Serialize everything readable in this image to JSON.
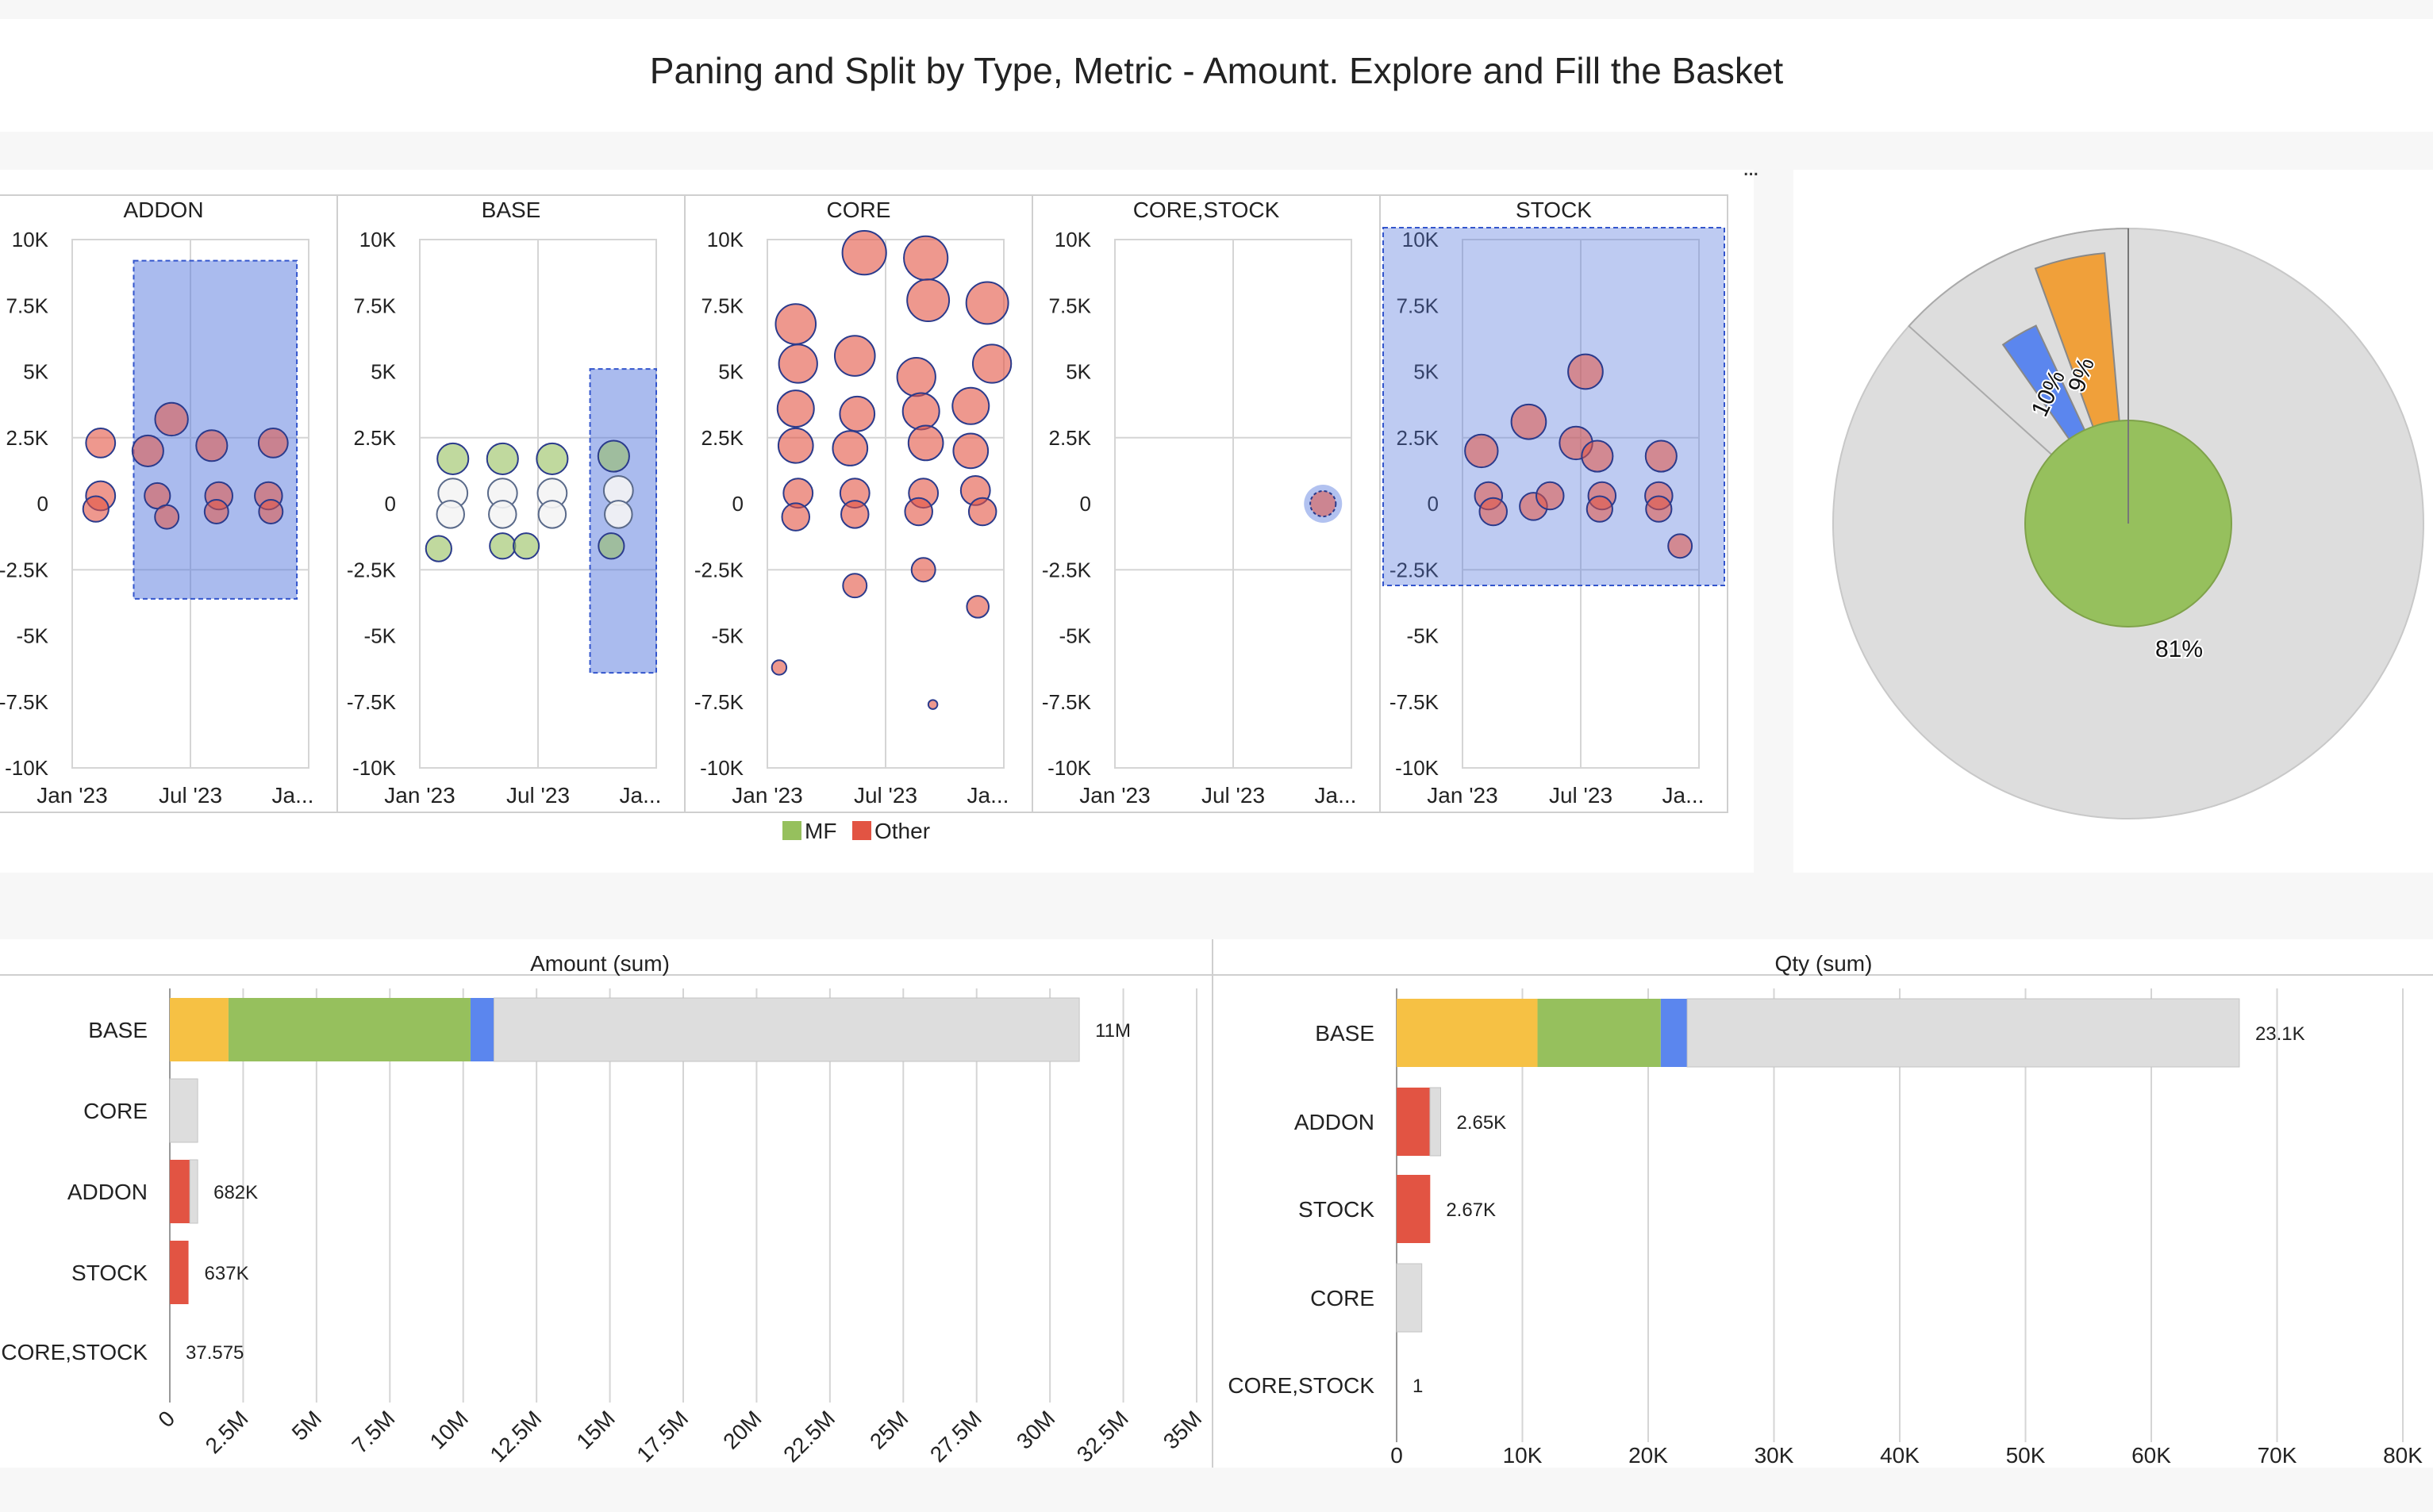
{
  "title": "Paning and Split by Type, Metric - Amount. Explore and Fill the Basket",
  "more_label": "...",
  "colors": {
    "mf": "#96c05d",
    "other": "#e25443",
    "blue": "#5b86ee",
    "orange": "#f0a03a",
    "yellow": "#f6c144",
    "grey": "#dddddd",
    "selection": "#5577dd",
    "bubble_edge": "#2b3b8c"
  },
  "chart_data": [
    {
      "type": "scatter",
      "panels": [
        "ADDON",
        "BASE",
        "CORE",
        "CORE,STOCK",
        "STOCK"
      ],
      "y_ticks": [
        "10K",
        "7.5K",
        "5K",
        "2.5K",
        "0",
        "-2.5K",
        "-5K",
        "-7.5K",
        "-10K"
      ],
      "ylim": [
        -10000,
        10000
      ],
      "x_ticks": [
        "Jan '23",
        "Jul '23",
        "Ja..."
      ],
      "legend": [
        {
          "name": "MF",
          "color": "#96c05d"
        },
        {
          "name": "Other",
          "color": "#e25443"
        }
      ],
      "selected_panel": "STOCK",
      "brushes": [
        {
          "panel": "ADDON",
          "x0": 0.26,
          "x1": 0.95,
          "y0": 9200,
          "y1": -3600
        },
        {
          "panel": "BASE",
          "x0": 0.72,
          "x1": 1.0,
          "y0": 5100,
          "y1": -6400
        }
      ],
      "points": {
        "ADDON": [
          {
            "x": 0.12,
            "y": 2300,
            "r": 16,
            "c": "other",
            "sel": false
          },
          {
            "x": 0.12,
            "y": 300,
            "r": 16,
            "c": "other",
            "sel": false
          },
          {
            "x": 0.1,
            "y": -200,
            "r": 14,
            "c": "other",
            "sel": false
          },
          {
            "x": 0.32,
            "y": 2000,
            "r": 17,
            "c": "other",
            "sel": true
          },
          {
            "x": 0.42,
            "y": 3200,
            "r": 18,
            "c": "other",
            "sel": true
          },
          {
            "x": 0.36,
            "y": 300,
            "r": 14,
            "c": "other",
            "sel": true
          },
          {
            "x": 0.4,
            "y": -500,
            "r": 13,
            "c": "other",
            "sel": true
          },
          {
            "x": 0.59,
            "y": 2200,
            "r": 17,
            "c": "other",
            "sel": true
          },
          {
            "x": 0.62,
            "y": 300,
            "r": 15,
            "c": "other",
            "sel": true
          },
          {
            "x": 0.61,
            "y": -300,
            "r": 13,
            "c": "other",
            "sel": true
          },
          {
            "x": 0.85,
            "y": 2300,
            "r": 16,
            "c": "other",
            "sel": true
          },
          {
            "x": 0.83,
            "y": 300,
            "r": 15,
            "c": "other",
            "sel": true
          },
          {
            "x": 0.84,
            "y": -300,
            "r": 13,
            "c": "other",
            "sel": true
          }
        ],
        "BASE": [
          {
            "x": 0.08,
            "y": -1700,
            "r": 14,
            "c": "mf",
            "sel": false
          },
          {
            "x": 0.14,
            "y": 1700,
            "r": 17,
            "c": "mf",
            "sel": false
          },
          {
            "x": 0.14,
            "y": 400,
            "r": 16,
            "c": "none",
            "sel": false
          },
          {
            "x": 0.13,
            "y": -400,
            "r": 15,
            "c": "none",
            "sel": false
          },
          {
            "x": 0.35,
            "y": 1700,
            "r": 17,
            "c": "mf",
            "sel": false
          },
          {
            "x": 0.35,
            "y": 400,
            "r": 16,
            "c": "none",
            "sel": false
          },
          {
            "x": 0.35,
            "y": -400,
            "r": 15,
            "c": "none",
            "sel": false
          },
          {
            "x": 0.35,
            "y": -1600,
            "r": 14,
            "c": "mf",
            "sel": false
          },
          {
            "x": 0.45,
            "y": -1600,
            "r": 14,
            "c": "mf",
            "sel": false
          },
          {
            "x": 0.56,
            "y": 1700,
            "r": 17,
            "c": "mf",
            "sel": false
          },
          {
            "x": 0.56,
            "y": 400,
            "r": 16,
            "c": "none",
            "sel": false
          },
          {
            "x": 0.56,
            "y": -400,
            "r": 15,
            "c": "none",
            "sel": false
          },
          {
            "x": 0.82,
            "y": 1800,
            "r": 17,
            "c": "mf",
            "sel": true
          },
          {
            "x": 0.84,
            "y": 500,
            "r": 16,
            "c": "none",
            "sel": true
          },
          {
            "x": 0.84,
            "y": -400,
            "r": 15,
            "c": "none",
            "sel": true
          },
          {
            "x": 0.81,
            "y": -1600,
            "r": 14,
            "c": "mf",
            "sel": true
          }
        ],
        "CORE": [
          {
            "x": 0.05,
            "y": -6200,
            "r": 8,
            "c": "other",
            "sel": false
          },
          {
            "x": 0.12,
            "y": 6800,
            "r": 22,
            "c": "other",
            "sel": false
          },
          {
            "x": 0.13,
            "y": 5300,
            "r": 21,
            "c": "other",
            "sel": false
          },
          {
            "x": 0.12,
            "y": 3600,
            "r": 20,
            "c": "other",
            "sel": false
          },
          {
            "x": 0.12,
            "y": 2200,
            "r": 19,
            "c": "other",
            "sel": false
          },
          {
            "x": 0.13,
            "y": 400,
            "r": 16,
            "c": "other",
            "sel": false
          },
          {
            "x": 0.12,
            "y": -500,
            "r": 15,
            "c": "other",
            "sel": false
          },
          {
            "x": 0.41,
            "y": 9500,
            "r": 24,
            "c": "other",
            "sel": false
          },
          {
            "x": 0.37,
            "y": 5600,
            "r": 22,
            "c": "other",
            "sel": false
          },
          {
            "x": 0.38,
            "y": 3400,
            "r": 19,
            "c": "other",
            "sel": false
          },
          {
            "x": 0.35,
            "y": 2100,
            "r": 19,
            "c": "other",
            "sel": false
          },
          {
            "x": 0.37,
            "y": 400,
            "r": 16,
            "c": "other",
            "sel": false
          },
          {
            "x": 0.37,
            "y": -400,
            "r": 15,
            "c": "other",
            "sel": false
          },
          {
            "x": 0.37,
            "y": -3100,
            "r": 13,
            "c": "other",
            "sel": false
          },
          {
            "x": 0.67,
            "y": 9300,
            "r": 24,
            "c": "other",
            "sel": false
          },
          {
            "x": 0.68,
            "y": 7700,
            "r": 23,
            "c": "other",
            "sel": false
          },
          {
            "x": 0.63,
            "y": 4800,
            "r": 21,
            "c": "other",
            "sel": false
          },
          {
            "x": 0.65,
            "y": 3500,
            "r": 20,
            "c": "other",
            "sel": false
          },
          {
            "x": 0.67,
            "y": 2300,
            "r": 19,
            "c": "other",
            "sel": false
          },
          {
            "x": 0.66,
            "y": 400,
            "r": 16,
            "c": "other",
            "sel": false
          },
          {
            "x": 0.64,
            "y": -300,
            "r": 15,
            "c": "other",
            "sel": false
          },
          {
            "x": 0.66,
            "y": -2500,
            "r": 13,
            "c": "other",
            "sel": false
          },
          {
            "x": 0.7,
            "y": -7600,
            "r": 5,
            "c": "other",
            "sel": false
          },
          {
            "x": 0.93,
            "y": 7600,
            "r": 23,
            "c": "other",
            "sel": false
          },
          {
            "x": 0.95,
            "y": 5300,
            "r": 21,
            "c": "other",
            "sel": false
          },
          {
            "x": 0.86,
            "y": 3700,
            "r": 20,
            "c": "other",
            "sel": false
          },
          {
            "x": 0.86,
            "y": 2000,
            "r": 19,
            "c": "other",
            "sel": false
          },
          {
            "x": 0.88,
            "y": 500,
            "r": 16,
            "c": "other",
            "sel": false
          },
          {
            "x": 0.91,
            "y": -300,
            "r": 15,
            "c": "other",
            "sel": false
          },
          {
            "x": 0.89,
            "y": -3900,
            "r": 12,
            "c": "other",
            "sel": false
          }
        ],
        "CORE,STOCK": [
          {
            "x": 0.88,
            "y": 0,
            "r": 14,
            "c": "other",
            "sel": true
          }
        ],
        "STOCK": [
          {
            "x": 0.08,
            "y": 2000,
            "r": 18,
            "c": "other",
            "sel": true
          },
          {
            "x": 0.11,
            "y": 300,
            "r": 15,
            "c": "other",
            "sel": true
          },
          {
            "x": 0.13,
            "y": -300,
            "r": 15,
            "c": "other",
            "sel": true
          },
          {
            "x": 0.28,
            "y": 3100,
            "r": 19,
            "c": "other",
            "sel": true
          },
          {
            "x": 0.3,
            "y": -100,
            "r": 15,
            "c": "other",
            "sel": true
          },
          {
            "x": 0.37,
            "y": 300,
            "r": 15,
            "c": "other",
            "sel": true
          },
          {
            "x": 0.48,
            "y": 2300,
            "r": 18,
            "c": "other",
            "sel": true
          },
          {
            "x": 0.52,
            "y": 5000,
            "r": 19,
            "c": "other",
            "sel": true
          },
          {
            "x": 0.57,
            "y": 1800,
            "r": 17,
            "c": "other",
            "sel": true
          },
          {
            "x": 0.59,
            "y": 300,
            "r": 15,
            "c": "other",
            "sel": true
          },
          {
            "x": 0.58,
            "y": -200,
            "r": 14,
            "c": "other",
            "sel": true
          },
          {
            "x": 0.84,
            "y": 1800,
            "r": 17,
            "c": "other",
            "sel": true
          },
          {
            "x": 0.83,
            "y": 300,
            "r": 15,
            "c": "other",
            "sel": true
          },
          {
            "x": 0.83,
            "y": -200,
            "r": 14,
            "c": "other",
            "sel": true
          },
          {
            "x": 0.92,
            "y": -1600,
            "r": 13,
            "c": "other",
            "sel": true
          }
        ]
      }
    },
    {
      "type": "pie",
      "slices": [
        {
          "label": "81%",
          "pct": 0.81,
          "color": "#96c05d",
          "selected": false
        },
        {
          "label": "",
          "pct": 0.35,
          "color": "#dddddd",
          "selected": false
        },
        {
          "label": "",
          "pct": 0.03,
          "color": "#dddddd",
          "selected": false
        },
        {
          "label": "10%",
          "pct": 0.1,
          "color": "#5b86ee",
          "selected": true
        },
        {
          "label": "9%",
          "pct": 0.09,
          "color": "#f0a03a",
          "selected": true
        },
        {
          "label": "",
          "pct": 0.08,
          "color": "#dddddd",
          "selected": true
        },
        {
          "label": "",
          "pct": 0.06,
          "color": "#dddddd",
          "selected": true
        },
        {
          "label": "",
          "pct": 0.81,
          "color": "#dddddd",
          "selected": true
        }
      ]
    },
    {
      "type": "bar",
      "title": "Amount (sum)",
      "categories": [
        "BASE",
        "CORE",
        "ADDON",
        "STOCK",
        "CORE,STOCK"
      ],
      "xlim": [
        0,
        35000000
      ],
      "x_ticks": [
        {
          "v": 0,
          "l": "0"
        },
        {
          "v": 2500000,
          "l": "2.5M"
        },
        {
          "v": 5000000,
          "l": "5M"
        },
        {
          "v": 7500000,
          "l": "7.5M"
        },
        {
          "v": 10000000,
          "l": "10M"
        },
        {
          "v": 12500000,
          "l": "12.5M"
        },
        {
          "v": 15000000,
          "l": "15M"
        },
        {
          "v": 17500000,
          "l": "17.5M"
        },
        {
          "v": 20000000,
          "l": "20M"
        },
        {
          "v": 22500000,
          "l": "22.5M"
        },
        {
          "v": 25000000,
          "l": "25M"
        },
        {
          "v": 27500000,
          "l": "27.5M"
        },
        {
          "v": 30000000,
          "l": "30M"
        },
        {
          "v": 32500000,
          "l": "32.5M"
        },
        {
          "v": 35000000,
          "l": "35M"
        }
      ],
      "bars": [
        {
          "category": "BASE",
          "label": "11M",
          "total": 31000000,
          "segments": [
            {
              "v": 2000000,
              "color": "#f6c144"
            },
            {
              "v": 8250000,
              "color": "#96c05d"
            },
            {
              "v": 800000,
              "color": "#5b86ee"
            },
            {
              "v": 19950000,
              "color": "#dddddd"
            }
          ]
        },
        {
          "category": "CORE",
          "label": "",
          "total": 950000,
          "segments": [
            {
              "v": 950000,
              "color": "#dddddd"
            }
          ]
        },
        {
          "category": "ADDON",
          "label": "682K",
          "total": 950000,
          "segments": [
            {
              "v": 682000,
              "color": "#e25443"
            },
            {
              "v": 268000,
              "color": "#dddddd"
            }
          ]
        },
        {
          "category": "STOCK",
          "label": "637K",
          "total": 637000,
          "segments": [
            {
              "v": 637000,
              "color": "#e25443"
            }
          ]
        },
        {
          "category": "CORE,STOCK",
          "label": "37.575",
          "total": 37.575,
          "segments": [
            {
              "v": 37.575,
              "color": "#e25443"
            }
          ]
        }
      ]
    },
    {
      "type": "bar",
      "title": "Qty (sum)",
      "categories": [
        "BASE",
        "ADDON",
        "STOCK",
        "CORE",
        "CORE,STOCK"
      ],
      "xlim": [
        0,
        80000
      ],
      "x_ticks": [
        {
          "v": 0,
          "l": "0"
        },
        {
          "v": 10000,
          "l": "10K"
        },
        {
          "v": 20000,
          "l": "20K"
        },
        {
          "v": 30000,
          "l": "30K"
        },
        {
          "v": 40000,
          "l": "40K"
        },
        {
          "v": 50000,
          "l": "50K"
        },
        {
          "v": 60000,
          "l": "60K"
        },
        {
          "v": 70000,
          "l": "70K"
        },
        {
          "v": 80000,
          "l": "80K"
        }
      ],
      "bars": [
        {
          "category": "BASE",
          "label": "23.1K",
          "total": 67000,
          "segments": [
            {
              "v": 11200,
              "color": "#f6c144"
            },
            {
              "v": 9800,
              "color": "#96c05d"
            },
            {
              "v": 2100,
              "color": "#5b86ee"
            },
            {
              "v": 43900,
              "color": "#dddddd"
            }
          ]
        },
        {
          "category": "ADDON",
          "label": "2.65K",
          "total": 3500,
          "segments": [
            {
              "v": 2650,
              "color": "#e25443"
            },
            {
              "v": 850,
              "color": "#dddddd"
            }
          ]
        },
        {
          "category": "STOCK",
          "label": "2.67K",
          "total": 2670,
          "segments": [
            {
              "v": 2670,
              "color": "#e25443"
            }
          ]
        },
        {
          "category": "CORE",
          "label": "",
          "total": 2000,
          "segments": [
            {
              "v": 2000,
              "color": "#dddddd"
            }
          ]
        },
        {
          "category": "CORE,STOCK",
          "label": "1",
          "total": 1,
          "segments": [
            {
              "v": 1,
              "color": "#e25443"
            }
          ]
        }
      ]
    }
  ]
}
